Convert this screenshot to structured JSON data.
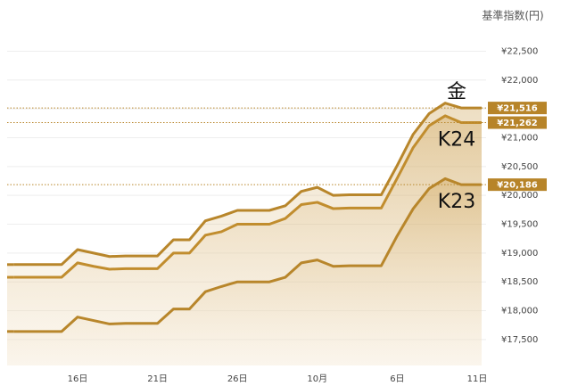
{
  "chart_data": {
    "type": "line",
    "y_axis_title": "基準指数(円)",
    "categories": [
      null,
      null,
      null,
      null,
      "16日",
      null,
      null,
      null,
      null,
      "21日",
      null,
      null,
      null,
      null,
      "26日",
      null,
      null,
      null,
      null,
      "10月",
      null,
      null,
      null,
      null,
      "6日",
      null,
      null,
      null,
      null,
      "11日"
    ],
    "series": [
      {
        "name": "金",
        "color": "#b8862b",
        "values": [
          18800,
          18800,
          18800,
          18800,
          19060,
          19000,
          18940,
          18950,
          18950,
          18950,
          19230,
          19230,
          19560,
          19640,
          19740,
          19740,
          19740,
          19820,
          20070,
          20140,
          20000,
          20010,
          20010,
          20010,
          20520,
          21060,
          21420,
          21600,
          21516,
          21516
        ],
        "value_labels": [
          null,
          null,
          null,
          null,
          null,
          null,
          null,
          null,
          null,
          null,
          null,
          null,
          null,
          null,
          null,
          null,
          null,
          null,
          null,
          null,
          null,
          null,
          null,
          null,
          null,
          null,
          null,
          null,
          null,
          "¥21,516"
        ]
      },
      {
        "name": "K24",
        "color": "#c18d2e",
        "values": [
          18580,
          18580,
          18580,
          18580,
          18830,
          18770,
          18720,
          18730,
          18730,
          18730,
          19000,
          19000,
          19310,
          19370,
          19500,
          19500,
          19500,
          19600,
          19840,
          19880,
          19770,
          19780,
          19780,
          19780,
          20300,
          20830,
          21210,
          21380,
          21262,
          21262
        ],
        "value_labels": [
          null,
          null,
          null,
          null,
          null,
          null,
          null,
          null,
          null,
          null,
          null,
          null,
          null,
          null,
          null,
          null,
          null,
          null,
          null,
          null,
          null,
          null,
          null,
          null,
          null,
          null,
          null,
          null,
          null,
          "¥21,262"
        ]
      },
      {
        "name": "K23",
        "color": "#b8862b",
        "values": [
          17640,
          17640,
          17640,
          17640,
          17890,
          17830,
          17770,
          17780,
          17780,
          17780,
          18030,
          18030,
          18330,
          18420,
          18500,
          18500,
          18500,
          18580,
          18830,
          18880,
          18770,
          18780,
          18780,
          18780,
          19300,
          19770,
          20120,
          20290,
          20186,
          20186
        ],
        "value_labels": [
          null,
          null,
          null,
          null,
          null,
          null,
          null,
          null,
          null,
          null,
          null,
          null,
          null,
          null,
          null,
          null,
          null,
          null,
          null,
          null,
          null,
          null,
          null,
          null,
          null,
          null,
          null,
          null,
          null,
          "¥20,186"
        ]
      }
    ],
    "ylim": [
      17050,
      22770
    ],
    "yticks": [
      {
        "value": 17500,
        "label": "¥17,500"
      },
      {
        "value": 18000,
        "label": "¥18,000"
      },
      {
        "value": 18500,
        "label": "¥18,500"
      },
      {
        "value": 19000,
        "label": "¥19,000"
      },
      {
        "value": 19500,
        "label": "¥19,500"
      },
      {
        "value": 20000,
        "label": "¥20,000"
      },
      {
        "value": 20500,
        "label": "¥20,500"
      },
      {
        "value": 21000,
        "label": "¥21,000"
      },
      {
        "value": 21500,
        "label": "¥21,500"
      },
      {
        "value": 22000,
        "label": "¥22,000"
      },
      {
        "value": 22500,
        "label": "¥22,500"
      }
    ],
    "grid": true
  }
}
